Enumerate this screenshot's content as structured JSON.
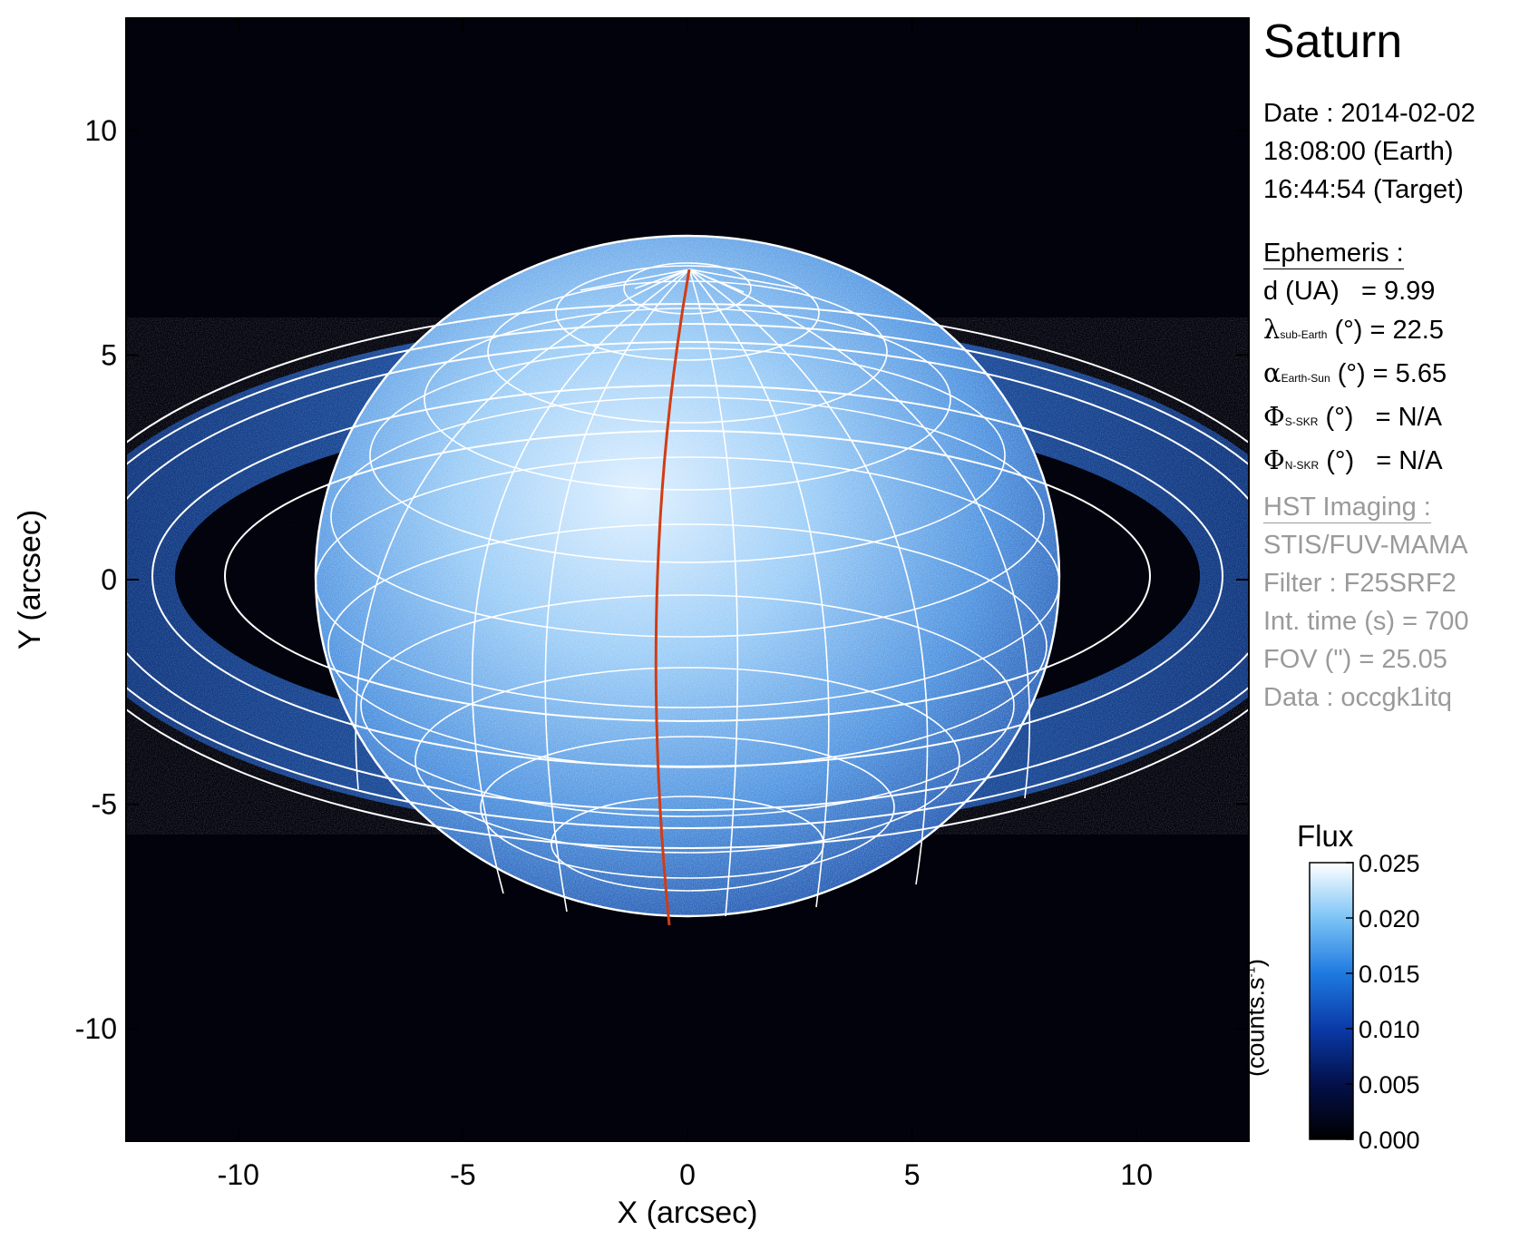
{
  "title": "Saturn",
  "date_lines": [
    "Date : 2014-02-02",
    "18:08:00 (Earth)",
    "16:44:54 (Target)"
  ],
  "ephemeris": {
    "heading": "Ephemeris :",
    "d_label": "d (UA)",
    "d_value": "= 9.99",
    "lambda_symbol": "λ",
    "lambda_sub": "sub-Earth",
    "lambda_unit": "(°)",
    "lambda_value": "= 22.5",
    "alpha_symbol": "α",
    "alpha_sub": "Earth-Sun",
    "alpha_unit": "(°)",
    "alpha_value": "= 5.65",
    "phis_symbol": "Φ",
    "phis_sub": "S-SKR",
    "phis_unit": "(°)",
    "phis_value": "= N/A",
    "phin_symbol": "Φ",
    "phin_sub": "N-SKR",
    "phin_unit": "(°)",
    "phin_value": "= N/A"
  },
  "hst": {
    "heading": "HST Imaging :",
    "lines": [
      "STIS/FUV-MAMA",
      "Filter : F25SRF2",
      "Int. time (s) = 700",
      "FOV (\") = 25.05",
      "Data : occgk1itq"
    ]
  },
  "axes": {
    "xlabel": "X (arcsec)",
    "ylabel": "Y (arcsec)",
    "xlim": [
      -12.5,
      12.5
    ],
    "ylim": [
      -12.5,
      12.5
    ],
    "xticks": [
      -10,
      -5,
      0,
      5,
      10
    ],
    "yticks": [
      -10,
      -5,
      0,
      5,
      10
    ],
    "xtick_labels": [
      "-10",
      "-5",
      "0",
      "5",
      "10"
    ],
    "ytick_labels": [
      "-10",
      "-5",
      "0",
      "5",
      "10"
    ]
  },
  "colorbar": {
    "title": "Flux",
    "unit": "(counts.s",
    "unit_sup": "-1",
    "unit_close": ")",
    "range": [
      0.0,
      0.025
    ],
    "tick_values": [
      0.0,
      0.005,
      0.01,
      0.015,
      0.02,
      0.025
    ],
    "tick_labels": [
      "0.000",
      "0.005",
      "0.010",
      "0.015",
      "0.020",
      "0.025"
    ]
  },
  "colors": {
    "sky": "#02020c",
    "disk_bright": "#cfe8ff",
    "disk_mid": "#4f9fe8",
    "ring": "#1f5fc4",
    "grid": "#ffffff",
    "meridian": "#d23c14",
    "cb_low": "#000000",
    "cb_high": "#ffffff"
  }
}
